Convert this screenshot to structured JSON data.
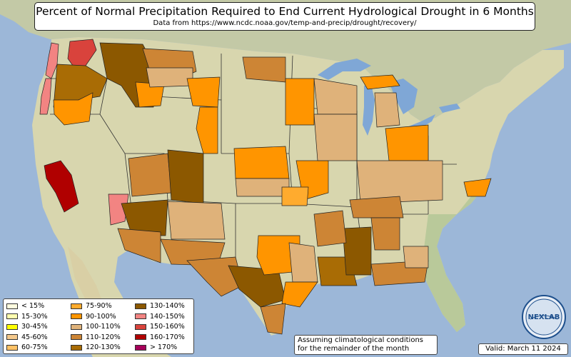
{
  "title": "Percent of Normal Precipitation Required to End Current Hydrological Drought in 6 Months",
  "subtitle": "Data from https://www.ncdc.noaa.gov/temp-and-precip/drought/recovery/",
  "note_line1": "Assuming climatological conditions",
  "note_line2": "for the remainder of the month",
  "valid": "Valid: March 11 2024",
  "logo_text": "NEXLAB",
  "colors": {
    "ocean": "#9cb7d8",
    "land": "#d8d6ae",
    "land_green": "#b9c99a",
    "canada": "#c3c9a6",
    "mexico": "#d9cfa5",
    "lake": "#7fa7d6",
    "border": "#222222"
  },
  "legend": [
    {
      "label": "< 15%",
      "color": "#fffde0"
    },
    {
      "label": "15-30%",
      "color": "#ffffb0"
    },
    {
      "label": "30-45%",
      "color": "#ffff00"
    },
    {
      "label": "45-60%",
      "color": "#f4c98c"
    },
    {
      "label": "60-75%",
      "color": "#ffc266"
    },
    {
      "label": "75-90%",
      "color": "#ffab2e"
    },
    {
      "label": "90-100%",
      "color": "#ff9500"
    },
    {
      "label": "100-110%",
      "color": "#dfb27a"
    },
    {
      "label": "110-120%",
      "color": "#cd8535"
    },
    {
      "label": "120-130%",
      "color": "#a96c05"
    },
    {
      "label": "130-140%",
      "color": "#8c5800"
    },
    {
      "label": "140-150%",
      "color": "#f28482"
    },
    {
      "label": "150-160%",
      "color": "#d9433c"
    },
    {
      "label": "160-170%",
      "color": "#b00000"
    },
    {
      "label": "> 170%",
      "color": "#a6005a"
    }
  ],
  "regions": [
    {
      "name": "washington-coast",
      "category": "140-150%",
      "color": "#f28482"
    },
    {
      "name": "oregon-coast",
      "category": "140-150%",
      "color": "#f28482"
    },
    {
      "name": "washington-cascades",
      "category": "150-160%",
      "color": "#d9433c"
    },
    {
      "name": "idaho-montana",
      "category": "130-140%",
      "color": "#8c5800"
    },
    {
      "name": "oregon-central",
      "category": "120-130%",
      "color": "#a96c05"
    },
    {
      "name": "oregon-southwest",
      "category": "90-100%",
      "color": "#ff9500"
    },
    {
      "name": "montana-east",
      "category": "110-120%",
      "color": "#cd8535"
    },
    {
      "name": "montana-north",
      "category": "90-100%",
      "color": "#ff9500"
    },
    {
      "name": "north-dakota",
      "category": "100-110%",
      "color": "#dfb27a"
    },
    {
      "name": "south-dakota",
      "category": "90-100%",
      "color": "#ff9500"
    },
    {
      "name": "wyoming",
      "category": "90-100%",
      "color": "#ff9500"
    },
    {
      "name": "california-central",
      "category": "160-170%",
      "color": "#b00000"
    },
    {
      "name": "nevada-south",
      "category": "140-150%",
      "color": "#f28482"
    },
    {
      "name": "utah-south",
      "category": "110-120%",
      "color": "#cd8535"
    },
    {
      "name": "colorado-west",
      "category": "130-140%",
      "color": "#8c5800"
    },
    {
      "name": "arizona-north",
      "category": "130-140%",
      "color": "#8c5800"
    },
    {
      "name": "arizona-south",
      "category": "110-120%",
      "color": "#cd8535"
    },
    {
      "name": "new-mexico",
      "category": "100-110%",
      "color": "#dfb27a"
    },
    {
      "name": "new-mexico-south",
      "category": "110-120%",
      "color": "#cd8535"
    },
    {
      "name": "texas-west",
      "category": "110-120%",
      "color": "#cd8535"
    },
    {
      "name": "texas-central",
      "category": "130-140%",
      "color": "#8c5800"
    },
    {
      "name": "texas-north",
      "category": "90-100%",
      "color": "#ff9500"
    },
    {
      "name": "texas-east",
      "category": "100-110%",
      "color": "#dfb27a"
    },
    {
      "name": "texas-coast",
      "category": "90-100%",
      "color": "#ff9500"
    },
    {
      "name": "texas-south",
      "category": "110-120%",
      "color": "#cd8535"
    },
    {
      "name": "louisiana",
      "category": "120-130%",
      "color": "#a96c05"
    },
    {
      "name": "mississippi",
      "category": "130-140%",
      "color": "#8c5800"
    },
    {
      "name": "arkansas",
      "category": "110-120%",
      "color": "#cd8535"
    },
    {
      "name": "kansas",
      "category": "90-100%",
      "color": "#ff9500"
    },
    {
      "name": "nebraska",
      "category": "100-110%",
      "color": "#dfb27a"
    },
    {
      "name": "missouri",
      "category": "90-100%",
      "color": "#ff9500"
    },
    {
      "name": "oklahoma",
      "category": "75-90%",
      "color": "#ffab2e"
    },
    {
      "name": "minnesota",
      "category": "110-120%",
      "color": "#cd8535"
    },
    {
      "name": "wisconsin",
      "category": "100-110%",
      "color": "#dfb27a"
    },
    {
      "name": "iowa",
      "category": "90-100%",
      "color": "#ff9500"
    },
    {
      "name": "illinois",
      "category": "100-110%",
      "color": "#dfb27a"
    },
    {
      "name": "michigan-upper",
      "category": "90-100%",
      "color": "#ff9500"
    },
    {
      "name": "michigan-lower",
      "category": "100-110%",
      "color": "#dfb27a"
    },
    {
      "name": "indiana-ohio",
      "category": "90-100%",
      "color": "#ff9500"
    },
    {
      "name": "kentucky-tennessee",
      "category": "100-110%",
      "color": "#dfb27a"
    },
    {
      "name": "tennessee-west",
      "category": "110-120%",
      "color": "#cd8535"
    },
    {
      "name": "alabama",
      "category": "110-120%",
      "color": "#cd8535"
    },
    {
      "name": "gulf-coast",
      "category": "110-120%",
      "color": "#cd8535"
    },
    {
      "name": "virginia-coast",
      "category": "90-100%",
      "color": "#ff9500"
    },
    {
      "name": "carolina-piedmont",
      "category": "100-110%",
      "color": "#dfb27a"
    }
  ]
}
